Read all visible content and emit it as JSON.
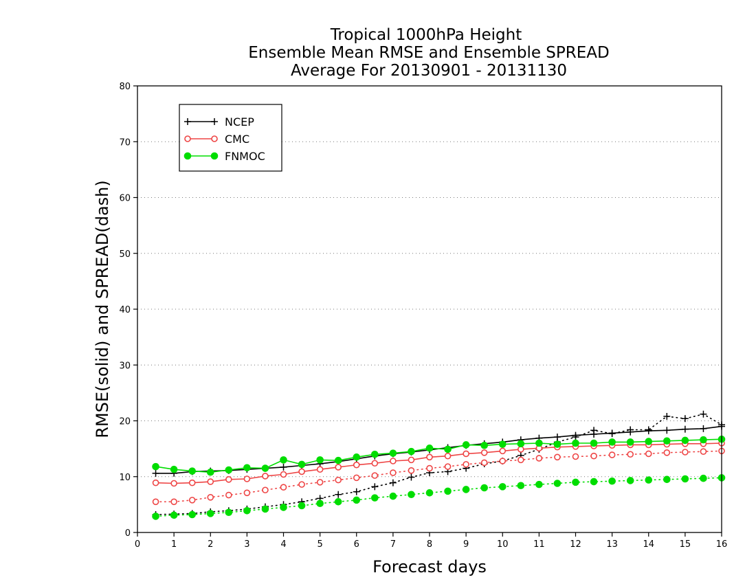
{
  "chart_data": {
    "type": "line",
    "title_lines": [
      "Tropical 1000hPa Height",
      "Ensemble Mean RMSE and Ensemble SPREAD",
      "Average For 20130901 - 20131130"
    ],
    "xlabel": "Forecast days",
    "ylabel": "RMSE(solid) and SPREAD(dash)",
    "xlim": [
      0,
      16
    ],
    "ylim": [
      0,
      80
    ],
    "x_ticks": [
      0,
      1,
      2,
      3,
      4,
      5,
      6,
      7,
      8,
      9,
      10,
      11,
      12,
      13,
      14,
      15,
      16
    ],
    "y_ticks": [
      0,
      10,
      20,
      30,
      40,
      50,
      60,
      70,
      80
    ],
    "grid": "horizontal dotted",
    "legend_position": "top-left",
    "x": [
      0.5,
      1,
      1.5,
      2,
      2.5,
      3,
      3.5,
      4,
      4.5,
      5,
      5.5,
      6,
      6.5,
      7,
      7.5,
      8,
      8.5,
      9,
      9.5,
      10,
      10.5,
      11,
      11.5,
      12,
      12.5,
      13,
      13.5,
      14,
      14.5,
      15,
      15.5,
      16
    ],
    "series": [
      {
        "name": "NCEP",
        "color": "#000000",
        "marker": "plus",
        "rmse": [
          10.6,
          10.6,
          10.9,
          11.0,
          11.1,
          11.3,
          11.5,
          11.7,
          12.0,
          12.3,
          12.7,
          13.2,
          13.7,
          14.1,
          14.4,
          14.8,
          15.2,
          15.6,
          15.9,
          16.2,
          16.6,
          16.9,
          17.1,
          17.4,
          17.6,
          17.8,
          18.0,
          18.2,
          18.3,
          18.5,
          18.6,
          19.0
        ],
        "spread": [
          3.2,
          3.3,
          3.4,
          3.7,
          3.9,
          4.2,
          4.6,
          5.0,
          5.5,
          6.1,
          6.8,
          7.3,
          8.2,
          8.9,
          9.9,
          10.7,
          10.9,
          11.5,
          12.3,
          12.8,
          13.8,
          14.9,
          16.2,
          17.1,
          18.3,
          17.7,
          18.4,
          18.4,
          20.8,
          20.4,
          21.2,
          19.3
        ]
      },
      {
        "name": "CMC",
        "color": "#ee4444",
        "marker": "open-circle",
        "rmse": [
          8.9,
          8.8,
          8.9,
          9.1,
          9.5,
          9.6,
          10.1,
          10.4,
          10.9,
          11.3,
          11.7,
          12.1,
          12.4,
          12.8,
          13.0,
          13.5,
          13.7,
          14.1,
          14.3,
          14.6,
          14.9,
          15.1,
          15.3,
          15.4,
          15.5,
          15.6,
          15.7,
          15.7,
          15.8,
          15.9,
          15.9,
          16.0
        ],
        "spread": [
          5.5,
          5.5,
          5.8,
          6.3,
          6.7,
          7.1,
          7.6,
          8.1,
          8.6,
          9.0,
          9.4,
          9.8,
          10.2,
          10.7,
          11.1,
          11.5,
          11.8,
          12.2,
          12.5,
          12.8,
          13.0,
          13.3,
          13.5,
          13.6,
          13.7,
          13.9,
          14.0,
          14.1,
          14.3,
          14.4,
          14.5,
          14.6
        ]
      },
      {
        "name": "FNMOC",
        "color": "#00dd00",
        "marker": "filled-circle",
        "rmse": [
          11.8,
          11.3,
          11.0,
          10.8,
          11.2,
          11.6,
          11.5,
          13.0,
          12.2,
          13.0,
          12.9,
          13.5,
          14.0,
          14.2,
          14.5,
          15.1,
          14.9,
          15.7,
          15.6,
          15.8,
          15.9,
          16.0,
          15.8,
          16.0,
          16.0,
          16.2,
          16.2,
          16.3,
          16.4,
          16.5,
          16.6,
          16.7
        ],
        "spread": [
          2.9,
          3.1,
          3.2,
          3.4,
          3.6,
          3.9,
          4.2,
          4.5,
          4.8,
          5.2,
          5.5,
          5.8,
          6.2,
          6.5,
          6.8,
          7.1,
          7.4,
          7.7,
          8.0,
          8.2,
          8.4,
          8.6,
          8.8,
          9.0,
          9.1,
          9.2,
          9.3,
          9.4,
          9.5,
          9.6,
          9.7,
          9.8
        ]
      }
    ]
  }
}
